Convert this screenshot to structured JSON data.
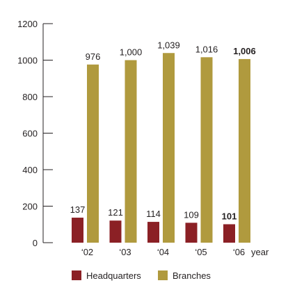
{
  "chart_data": {
    "type": "bar",
    "categories": [
      "‘02",
      "‘03",
      "‘04",
      "‘05",
      "‘06"
    ],
    "x_unit_label": "year",
    "series": [
      {
        "name": "Headquarters",
        "color": "#8b2025",
        "values": [
          137,
          121,
          114,
          109,
          101
        ],
        "labels": [
          "137",
          "121",
          "114",
          "109",
          "101"
        ]
      },
      {
        "name": "Branches",
        "color": "#b09a3e",
        "values": [
          976,
          1000,
          1039,
          1016,
          1006
        ],
        "labels": [
          "976",
          "1,000",
          "1,039",
          "1,016",
          "1,006"
        ]
      }
    ],
    "highlighted_category": "‘06",
    "ylim": [
      0,
      1200
    ],
    "yticks": [
      0,
      200,
      400,
      600,
      800,
      1000,
      1200
    ],
    "grid": false,
    "legend_position": "bottom",
    "axis_color": "#231f20"
  }
}
